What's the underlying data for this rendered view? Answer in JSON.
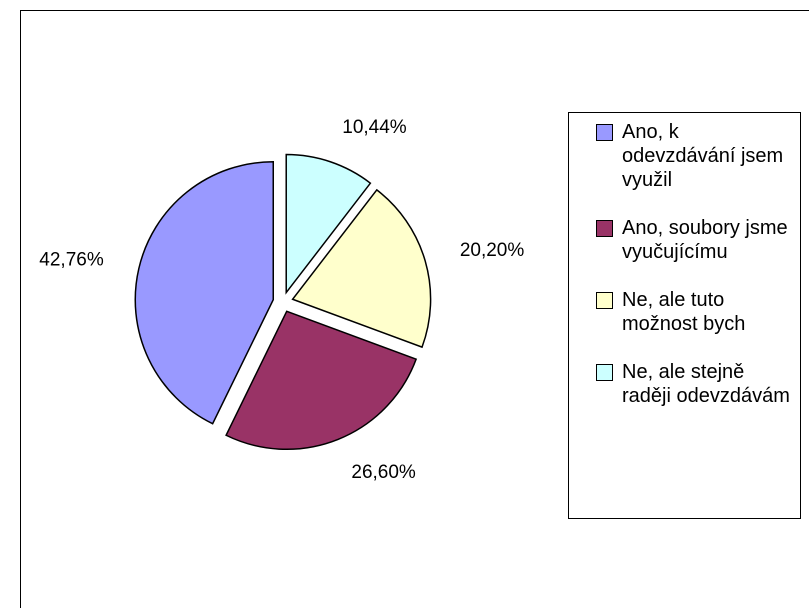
{
  "chart_data": {
    "type": "pie",
    "categories": [
      "Ano, k odevzdávání jsem využil",
      "Ano, soubory jsme vyučujícímu",
      "Ne, ale tuto možnost bych",
      "Ne, ale stejně raději odevzdávám"
    ],
    "values": [
      42.76,
      26.6,
      20.2,
      10.44
    ],
    "value_labels": [
      "42,76%",
      "26,60%",
      "20,20%",
      "10,44%"
    ],
    "colors": [
      "#9999ff",
      "#993366",
      "#ffffcc",
      "#ccffff"
    ],
    "legend": "right"
  }
}
